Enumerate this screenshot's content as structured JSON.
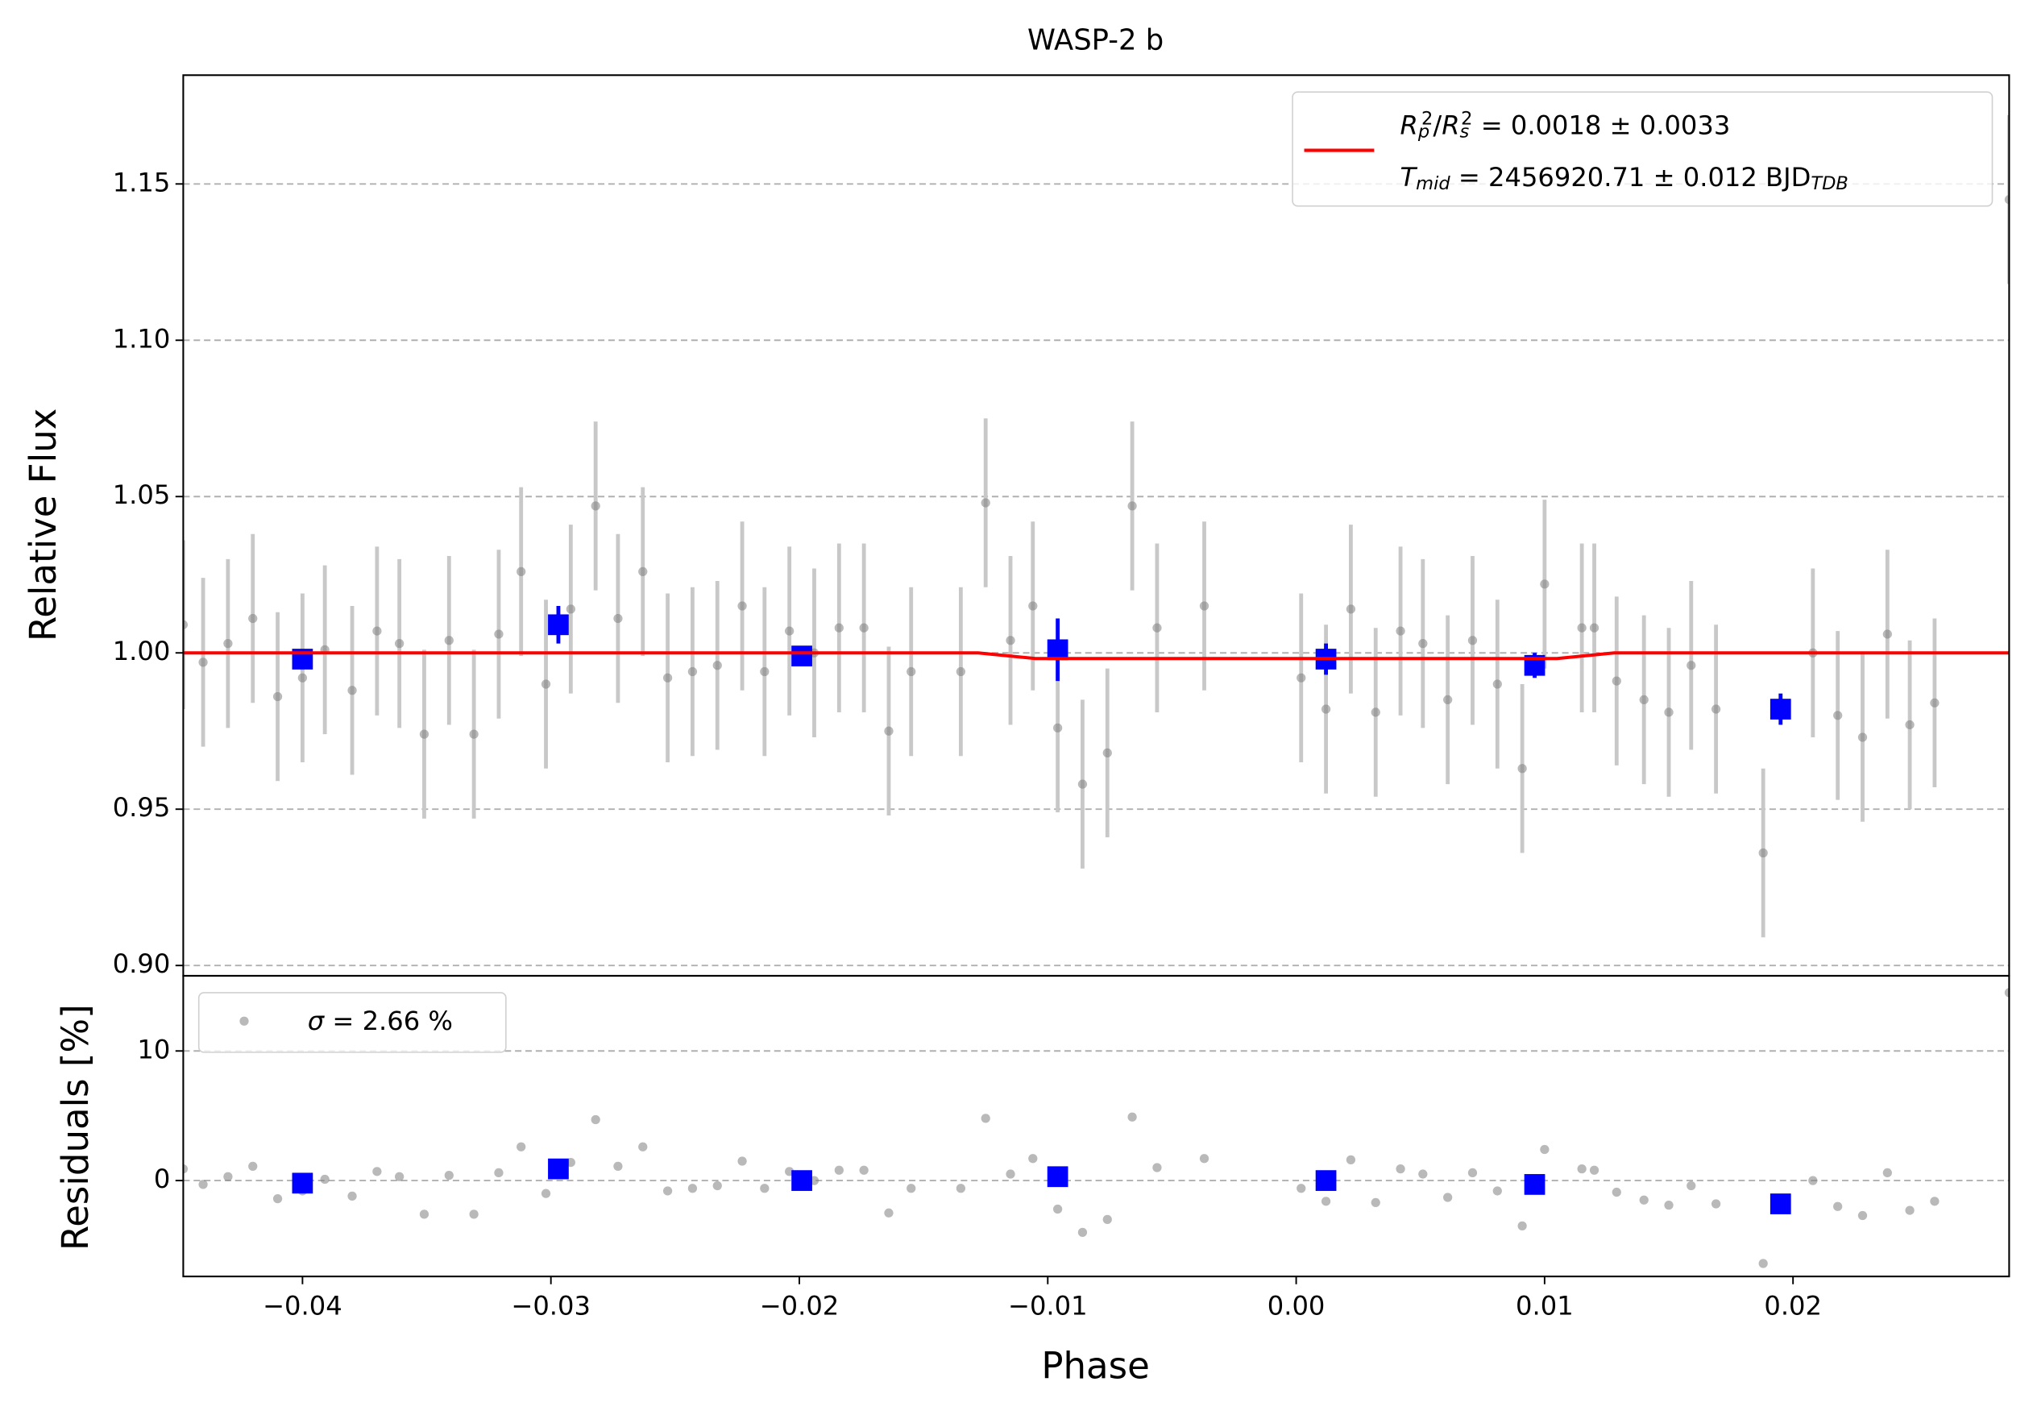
{
  "chart_data": [
    {
      "type": "errorbar",
      "title": "WASP-2 b",
      "ylabel": "Relative Flux",
      "xlim": [
        -0.0448,
        0.0287
      ],
      "ylim": [
        0.8967,
        1.1848
      ],
      "yticks": [
        {
          "value": 0.9,
          "label": "0.90"
        },
        0.95,
        {
          "value": 1.0,
          "label": "1.00"
        },
        1.05,
        {
          "value": 1.1,
          "label": "1.10"
        },
        1.15
      ],
      "grid": true,
      "legend": "upper right",
      "series": [
        {
          "color": "#808080",
          "x": [
            -0.0448,
            -0.044,
            -0.043,
            -0.042,
            -0.041,
            -0.04,
            -0.0391,
            -0.038,
            -0.037,
            -0.0361,
            -0.0351,
            -0.0341,
            -0.0331,
            -0.0321,
            -0.0312,
            -0.0302,
            -0.0292,
            -0.0282,
            -0.0273,
            -0.0263,
            -0.0253,
            -0.0243,
            -0.0233,
            -0.0223,
            -0.0214,
            -0.0204,
            -0.0194,
            -0.0184,
            -0.0174,
            -0.0164,
            -0.0155,
            -0.0135,
            -0.0125,
            -0.0115,
            -0.0106,
            -0.0096,
            -0.0086,
            -0.0076,
            -0.0066,
            -0.0056,
            -0.0037,
            0.0002,
            0.0012,
            0.0022,
            0.0032,
            0.0042,
            0.0051,
            0.0061,
            0.0071,
            0.0081,
            0.0091,
            0.01,
            0.0115,
            0.012,
            0.0129,
            0.014,
            0.015,
            0.0159,
            0.0169,
            0.0188,
            0.0208,
            0.0218,
            0.0228,
            0.0238,
            0.0247,
            0.0257,
            0.0287
          ],
          "values": [
            1.009,
            0.997,
            1.003,
            1.011,
            0.986,
            0.992,
            1.001,
            0.988,
            1.007,
            1.003,
            0.974,
            1.004,
            0.974,
            1.006,
            1.026,
            0.99,
            1.014,
            1.047,
            1.011,
            1.026,
            0.992,
            0.994,
            0.996,
            1.015,
            0.994,
            1.007,
            1.0,
            1.008,
            1.008,
            0.975,
            0.994,
            0.994,
            1.048,
            1.004,
            1.015,
            0.976,
            0.958,
            0.968,
            1.047,
            1.008,
            1.015,
            0.992,
            0.982,
            1.014,
            0.981,
            1.007,
            1.003,
            0.985,
            1.004,
            0.99,
            0.963,
            1.022,
            1.008,
            1.008,
            0.991,
            0.985,
            0.981,
            0.996,
            0.982,
            0.936,
            1.0,
            0.98,
            0.973,
            1.006,
            0.977,
            0.984,
            1.145
          ],
          "yerr": [
            0.027,
            0.027,
            0.027,
            0.027,
            0.027,
            0.027,
            0.027,
            0.027,
            0.027,
            0.027,
            0.027,
            0.027,
            0.027,
            0.027,
            0.027,
            0.027,
            0.027,
            0.027,
            0.027,
            0.027,
            0.027,
            0.027,
            0.027,
            0.027,
            0.027,
            0.027,
            0.027,
            0.027,
            0.027,
            0.027,
            0.027,
            0.027,
            0.027,
            0.027,
            0.027,
            0.027,
            0.027,
            0.027,
            0.027,
            0.027,
            0.027,
            0.027,
            0.027,
            0.027,
            0.027,
            0.027,
            0.027,
            0.027,
            0.027,
            0.027,
            0.027,
            0.027,
            0.027,
            0.027,
            0.027,
            0.027,
            0.027,
            0.027,
            0.027,
            0.027,
            0.027,
            0.027,
            0.027,
            0.027,
            0.027,
            0.027,
            0.027
          ]
        },
        {
          "color": "#0000ff",
          "x": [
            -0.04,
            -0.0297,
            -0.0199,
            -0.0096,
            0.0012,
            0.0096,
            0.0195
          ],
          "values": [
            0.998,
            1.009,
            0.999,
            1.001,
            0.998,
            0.996,
            0.982
          ],
          "yerr": [
            0.003,
            0.006,
            0.003,
            0.01,
            0.005,
            0.004,
            0.005
          ]
        },
        {
          "color": "#ff0000",
          "line": true,
          "x": [
            -0.0448,
            -0.0128,
            -0.0105,
            0.0105,
            0.0128,
            0.0287
          ],
          "values": [
            1.0,
            1.0,
            0.9982,
            0.9982,
            1.0,
            1.0
          ],
          "legend": [
            [
              {
                "t": "R",
                "s": "i"
              },
              {
                "t": "p",
                "s": "sub"
              },
              {
                "t": "2",
                "s": "sup"
              },
              {
                "t": "/",
                "s": "n"
              },
              {
                "t": "R",
                "s": "i"
              },
              {
                "t": "s",
                "s": "sub"
              },
              {
                "t": "2",
                "s": "sup"
              },
              {
                "t": " = 0.0018 ± 0.0033",
                "s": "n"
              }
            ],
            [
              {
                "t": "T",
                "s": "i"
              },
              {
                "t": "mid",
                "s": "sub"
              },
              {
                "t": " = 2456920.71 ± 0.012 BJD",
                "s": "n"
              },
              {
                "t": "TDB",
                "s": "sub"
              }
            ]
          ]
        }
      ]
    },
    {
      "type": "scatter",
      "ylabel": "Residuals [%]",
      "xlabel": "Phase",
      "xlim": [
        -0.0448,
        0.0287
      ],
      "ylim": [
        -7.4,
        15.8
      ],
      "xticks": [
        {
          "value": -0.04,
          "label": "−0.04"
        },
        {
          "value": -0.03,
          "label": "−0.03"
        },
        {
          "value": -0.02,
          "label": "−0.02"
        },
        {
          "value": -0.01,
          "label": "−0.01"
        },
        {
          "value": 0,
          "label": "0.00"
        },
        0.01,
        0.02
      ],
      "yticks": [
        0,
        10
      ],
      "grid": true,
      "legend": "upper left",
      "series": [
        {
          "color": "#808080",
          "x": [
            -0.0448,
            -0.044,
            -0.043,
            -0.042,
            -0.041,
            -0.04,
            -0.0391,
            -0.038,
            -0.037,
            -0.0361,
            -0.0351,
            -0.0341,
            -0.0331,
            -0.0321,
            -0.0312,
            -0.0302,
            -0.0292,
            -0.0282,
            -0.0273,
            -0.0263,
            -0.0253,
            -0.0243,
            -0.0233,
            -0.0223,
            -0.0214,
            -0.0204,
            -0.0194,
            -0.0184,
            -0.0174,
            -0.0164,
            -0.0155,
            -0.0135,
            -0.0125,
            -0.0115,
            -0.0106,
            -0.0096,
            -0.0086,
            -0.0076,
            -0.0066,
            -0.0056,
            -0.0037,
            0.0002,
            0.0012,
            0.0022,
            0.0032,
            0.0042,
            0.0051,
            0.0061,
            0.0071,
            0.0081,
            0.0091,
            0.01,
            0.0115,
            0.012,
            0.0129,
            0.014,
            0.015,
            0.0159,
            0.0169,
            0.0188,
            0.0208,
            0.0218,
            0.0228,
            0.0238,
            0.0247,
            0.0257,
            0.0287
          ],
          "values": [
            0.9,
            -0.3,
            0.3,
            1.1,
            -1.4,
            -0.8,
            0.1,
            -1.2,
            0.7,
            0.3,
            -2.6,
            0.4,
            -2.6,
            0.6,
            2.6,
            -1.0,
            1.4,
            4.7,
            1.1,
            2.6,
            -0.8,
            -0.6,
            -0.4,
            1.5,
            -0.6,
            0.7,
            0.0,
            0.8,
            0.8,
            -2.5,
            -0.6,
            -0.6,
            4.8,
            0.5,
            1.7,
            -2.2,
            -4.0,
            -3.0,
            4.9,
            1.0,
            1.7,
            -0.6,
            -1.6,
            1.6,
            -1.7,
            0.9,
            0.5,
            -1.3,
            0.6,
            -0.8,
            -3.5,
            2.4,
            0.9,
            0.8,
            -0.9,
            -1.5,
            -1.9,
            -0.4,
            -1.8,
            -6.4,
            0.0,
            -2.0,
            -2.7,
            0.6,
            -2.3,
            -1.6,
            14.5
          ],
          "legend": [
            [
              {
                "t": "σ",
                "s": "i"
              },
              {
                "t": " = 2.66 %",
                "s": "n"
              }
            ]
          ]
        },
        {
          "color": "#0000ff",
          "x": [
            -0.04,
            -0.0297,
            -0.0199,
            -0.0096,
            0.0012,
            0.0096,
            0.0195
          ],
          "values": [
            -0.2,
            0.9,
            0.0,
            0.3,
            0.0,
            -0.3,
            -1.8
          ]
        }
      ]
    }
  ]
}
